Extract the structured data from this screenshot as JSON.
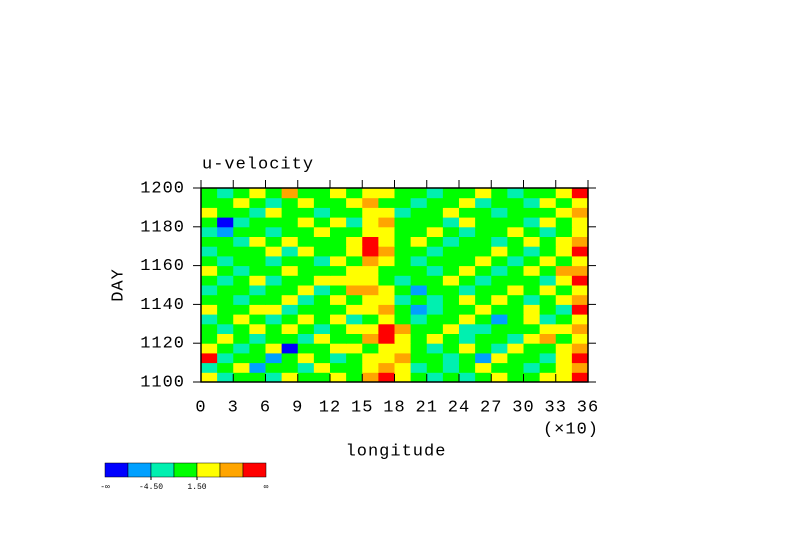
{
  "chart_data": {
    "type": "heatmap",
    "title": "u-velocity",
    "xlabel": "longitude",
    "ylabel": "DAY",
    "x_multiplier": "(×10)",
    "xlim": [
      0,
      36
    ],
    "ylim": [
      1100,
      1200
    ],
    "xticks": [
      0,
      3,
      6,
      9,
      12,
      15,
      18,
      21,
      24,
      27,
      30,
      33,
      36
    ],
    "yticks": [
      1100,
      1120,
      1140,
      1160,
      1180,
      1200
    ],
    "x": [
      0.75,
      2.25,
      3.75,
      5.25,
      6.75,
      8.25,
      9.75,
      11.25,
      12.75,
      14.25,
      15.75,
      17.25,
      18.75,
      20.25,
      21.75,
      23.25,
      24.75,
      26.25,
      27.75,
      29.25,
      30.75,
      32.25,
      33.75,
      35.25
    ],
    "y": [
      1102.5,
      1107.5,
      1112.5,
      1117.5,
      1122.5,
      1127.5,
      1132.5,
      1137.5,
      1142.5,
      1147.5,
      1152.5,
      1157.5,
      1162.5,
      1167.5,
      1172.5,
      1177.5,
      1182.5,
      1187.5,
      1192.5,
      1197.5
    ],
    "z": [
      [
        2,
        -3,
        1,
        0,
        -2,
        3,
        -1,
        0,
        2,
        1,
        5,
        9,
        4,
        0,
        -2,
        1,
        -3,
        0,
        2,
        -1,
        0,
        3,
        4,
        8
      ],
      [
        -3,
        0,
        2,
        -5,
        0,
        1,
        -2,
        3,
        0,
        -1,
        3,
        6,
        2,
        -2,
        0,
        -4,
        1,
        2,
        -1,
        0,
        -3,
        1,
        2,
        5
      ],
      [
        9,
        -2,
        0,
        1,
        -6,
        0,
        2,
        -1,
        -3,
        0,
        2,
        4,
        5,
        0,
        1,
        -2,
        0,
        -5,
        3,
        0,
        1,
        -2,
        3,
        9
      ],
      [
        4,
        1,
        -3,
        0,
        2,
        -8,
        -1,
        0,
        2,
        3,
        1,
        3,
        2,
        -1,
        -3,
        0,
        2,
        1,
        -2,
        4,
        0,
        -1,
        2,
        6
      ],
      [
        -1,
        3,
        0,
        -2,
        1,
        0,
        -3,
        2,
        0,
        1,
        5,
        8,
        3,
        0,
        2,
        -1,
        -4,
        0,
        1,
        -2,
        3,
        5,
        0,
        3
      ],
      [
        0,
        -2,
        1,
        3,
        -1,
        2,
        0,
        -4,
        1,
        2,
        3,
        9,
        5,
        -1,
        0,
        2,
        -2,
        -3,
        0,
        1,
        -1,
        2,
        4,
        7
      ],
      [
        -4,
        0,
        2,
        -1,
        -3,
        1,
        4,
        0,
        2,
        -2,
        1,
        3,
        0,
        -2,
        1,
        0,
        3,
        -1,
        -5,
        0,
        2,
        -3,
        1,
        4
      ],
      [
        2,
        -1,
        0,
        4,
        2,
        -2,
        0,
        1,
        -1,
        3,
        2,
        5,
        1,
        -5,
        -2,
        1,
        0,
        2,
        0,
        -1,
        4,
        1,
        -2,
        8
      ],
      [
        0,
        1,
        -3,
        0,
        -1,
        3,
        -2,
        0,
        4,
        1,
        3,
        2,
        -3,
        0,
        -4,
        -1,
        2,
        0,
        3,
        1,
        -2,
        0,
        2,
        5
      ],
      [
        -2,
        0,
        1,
        -2,
        0,
        -1,
        2,
        -3,
        0,
        5,
        6,
        4,
        0,
        -6,
        -1,
        0,
        -3,
        1,
        0,
        2,
        -1,
        3,
        0,
        2
      ],
      [
        1,
        -3,
        0,
        2,
        -4,
        0,
        1,
        2,
        3,
        4,
        3,
        0,
        -2,
        -1,
        0,
        2,
        1,
        -2,
        -1,
        0,
        1,
        -2,
        3,
        9
      ],
      [
        3,
        0,
        -2,
        1,
        0,
        2,
        -1,
        0,
        1,
        2,
        4,
        1,
        -1,
        0,
        -3,
        0,
        2,
        0,
        -2,
        1,
        3,
        0,
        5,
        6
      ],
      [
        0,
        -2,
        1,
        0,
        -3,
        1,
        0,
        -2,
        2,
        1,
        5,
        2,
        0,
        -2,
        1,
        -1,
        0,
        3,
        0,
        -4,
        0,
        2,
        1,
        4
      ],
      [
        -3,
        1,
        0,
        -1,
        2,
        -2,
        3,
        0,
        -1,
        2,
        9,
        6,
        1,
        0,
        -2,
        0,
        -1,
        0,
        2,
        1,
        -3,
        0,
        4,
        8
      ],
      [
        1,
        0,
        -4,
        2,
        0,
        3,
        -1,
        1,
        0,
        3,
        8,
        3,
        0,
        2,
        -1,
        -3,
        0,
        1,
        -2,
        0,
        2,
        -1,
        3,
        5
      ],
      [
        -2,
        -6,
        1,
        0,
        -2,
        0,
        1,
        3,
        -1,
        0,
        4,
        2,
        0,
        -1,
        3,
        0,
        -2,
        0,
        1,
        4,
        0,
        -2,
        1,
        3
      ],
      [
        0,
        -9,
        -3,
        1,
        0,
        -1,
        2,
        0,
        3,
        -2,
        2,
        5,
        -1,
        0,
        1,
        -2,
        3,
        1,
        0,
        -1,
        -3,
        2,
        0,
        4
      ],
      [
        2,
        -1,
        0,
        -2,
        3,
        1,
        0,
        -3,
        1,
        0,
        4,
        3,
        -2,
        1,
        0,
        2,
        -1,
        0,
        -4,
        0,
        1,
        0,
        2,
        6
      ],
      [
        -1,
        0,
        2,
        0,
        -3,
        0,
        2,
        1,
        0,
        3,
        5,
        1,
        0,
        -3,
        1,
        0,
        2,
        -2,
        0,
        1,
        -2,
        3,
        1,
        4
      ],
      [
        1,
        -3,
        0,
        2,
        0,
        5,
        -1,
        0,
        2,
        1,
        3,
        2,
        0,
        1,
        -2,
        0,
        -1,
        3,
        0,
        -2,
        1,
        0,
        4,
        9
      ]
    ],
    "colorbar": {
      "levels": [
        -7.5,
        -4.5,
        -1.5,
        1.5,
        4.5,
        7.5
      ],
      "colors": [
        "#0000ff",
        "#00a0ff",
        "#00f0b0",
        "#00ff00",
        "#ffff00",
        "#ffa500",
        "#ff0000"
      ],
      "ticks": [
        {
          "value": -4.5,
          "label": "-4.50"
        },
        {
          "value": 1.5,
          "label": "1.50"
        }
      ],
      "min_label": "-∞",
      "max_label": "∞"
    }
  }
}
